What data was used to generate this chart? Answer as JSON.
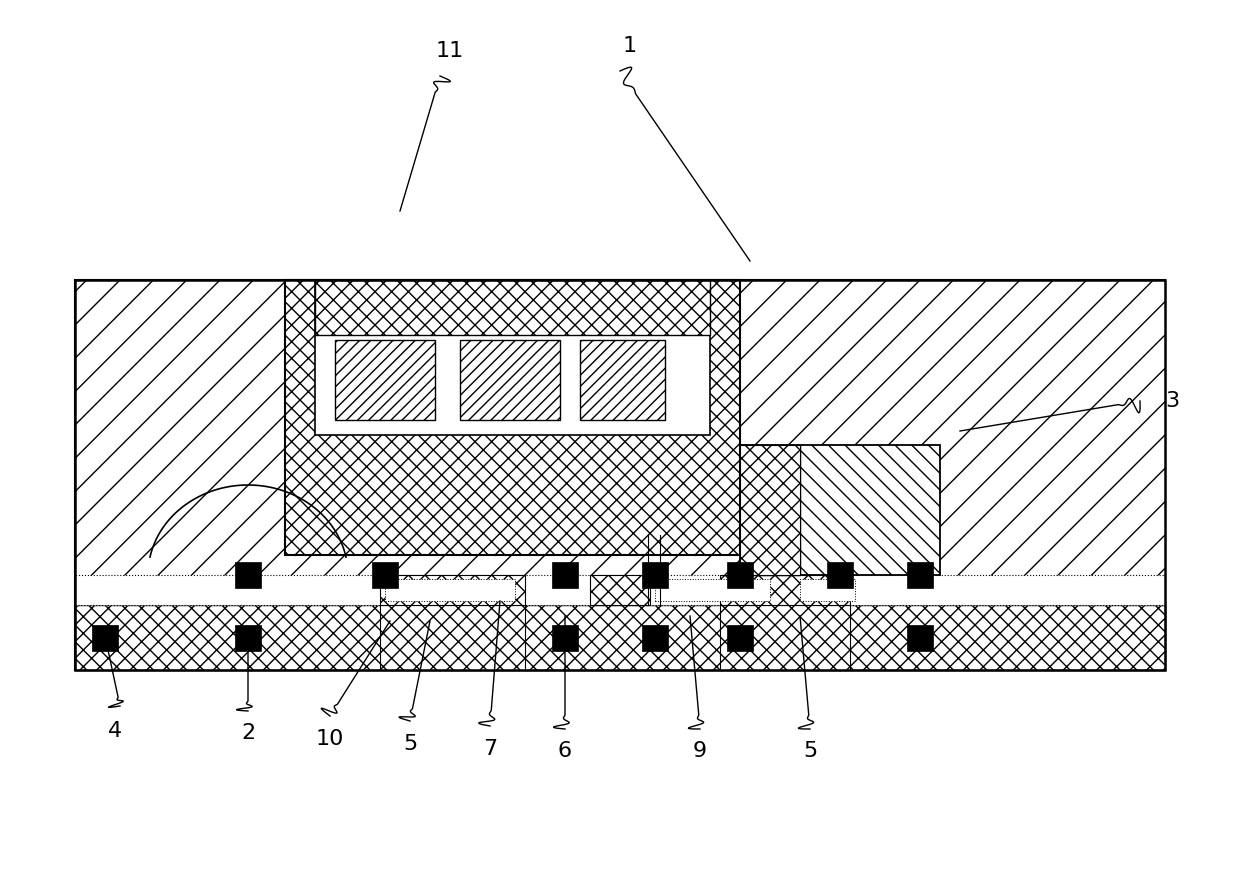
{
  "bg_color": "#ffffff",
  "lc": "#000000",
  "fig_width": 12.4,
  "fig_height": 8.91,
  "dpi": 100
}
